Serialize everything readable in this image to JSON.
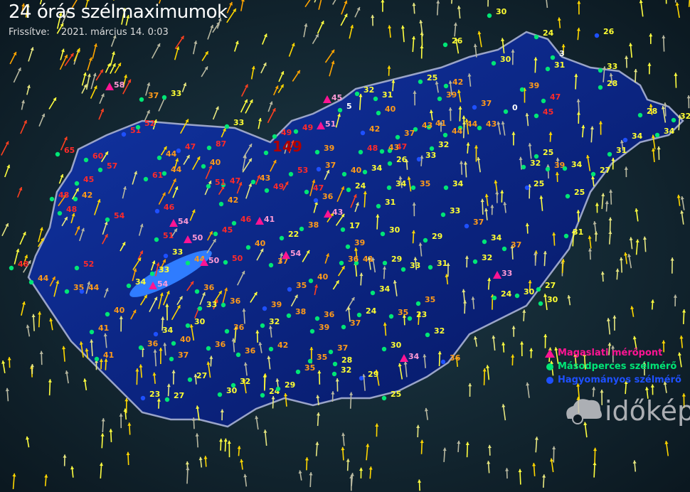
{
  "header": {
    "title": "24 órás szélmaximumok",
    "updated_label": "Frissítve:",
    "updated_value": "2021. március 14. 0:03"
  },
  "legend": [
    {
      "label": "Magaslati mérőpont",
      "color": "#ff1493",
      "symbol": "triangle"
    },
    {
      "label": "Másodperces szélmérő",
      "color": "#00e676",
      "symbol": "circle"
    },
    {
      "label": "Hagyományos szélmérő",
      "color": "#1e50ff",
      "symbol": "circle"
    }
  ],
  "logo": "időkép",
  "value_colors": {
    "low": "#ffff33",
    "mid": "#ff9a1a",
    "high": "#ff2a2a",
    "extreme": "#b00000",
    "mountain": "#ff9ad5"
  },
  "wind_max_values": [
    58,
    37,
    33,
    33,
    51,
    52,
    65,
    60,
    57,
    45,
    61,
    44,
    44,
    47,
    87,
    40,
    47,
    51,
    48,
    42,
    48,
    54,
    46,
    54,
    42,
    51,
    50,
    44,
    45,
    46,
    41,
    33,
    50,
    50,
    40,
    37,
    48,
    52,
    44,
    35,
    44,
    33,
    34,
    54,
    36,
    33,
    36,
    40,
    41,
    34,
    30,
    36,
    40,
    37,
    41,
    36,
    36,
    36,
    39,
    32,
    42,
    38,
    39,
    36,
    27,
    30,
    32,
    23,
    27,
    24,
    29,
    35,
    35,
    37,
    28,
    32,
    29,
    30,
    25,
    37,
    24,
    35,
    23,
    35,
    32,
    36,
    34,
    34,
    33,
    31,
    29,
    41,
    36,
    40,
    35,
    54,
    38,
    22,
    17,
    39,
    30,
    29,
    43,
    36,
    47,
    53,
    49,
    43,
    149,
    49,
    49,
    39,
    37,
    40,
    34,
    24,
    31,
    34,
    35,
    34,
    33,
    37,
    34,
    37,
    32,
    33,
    24,
    30,
    27,
    30,
    25,
    32,
    39,
    34,
    27,
    25,
    31,
    25,
    31,
    34,
    28,
    34,
    32,
    28,
    33,
    31,
    3,
    24,
    26,
    30,
    39,
    47,
    45,
    0,
    43,
    44,
    44,
    37,
    42,
    39,
    41,
    43,
    37,
    47,
    43,
    48,
    42,
    40,
    25,
    26,
    31,
    32,
    45,
    5,
    51,
    33,
    32,
    26,
    30
  ]
}
